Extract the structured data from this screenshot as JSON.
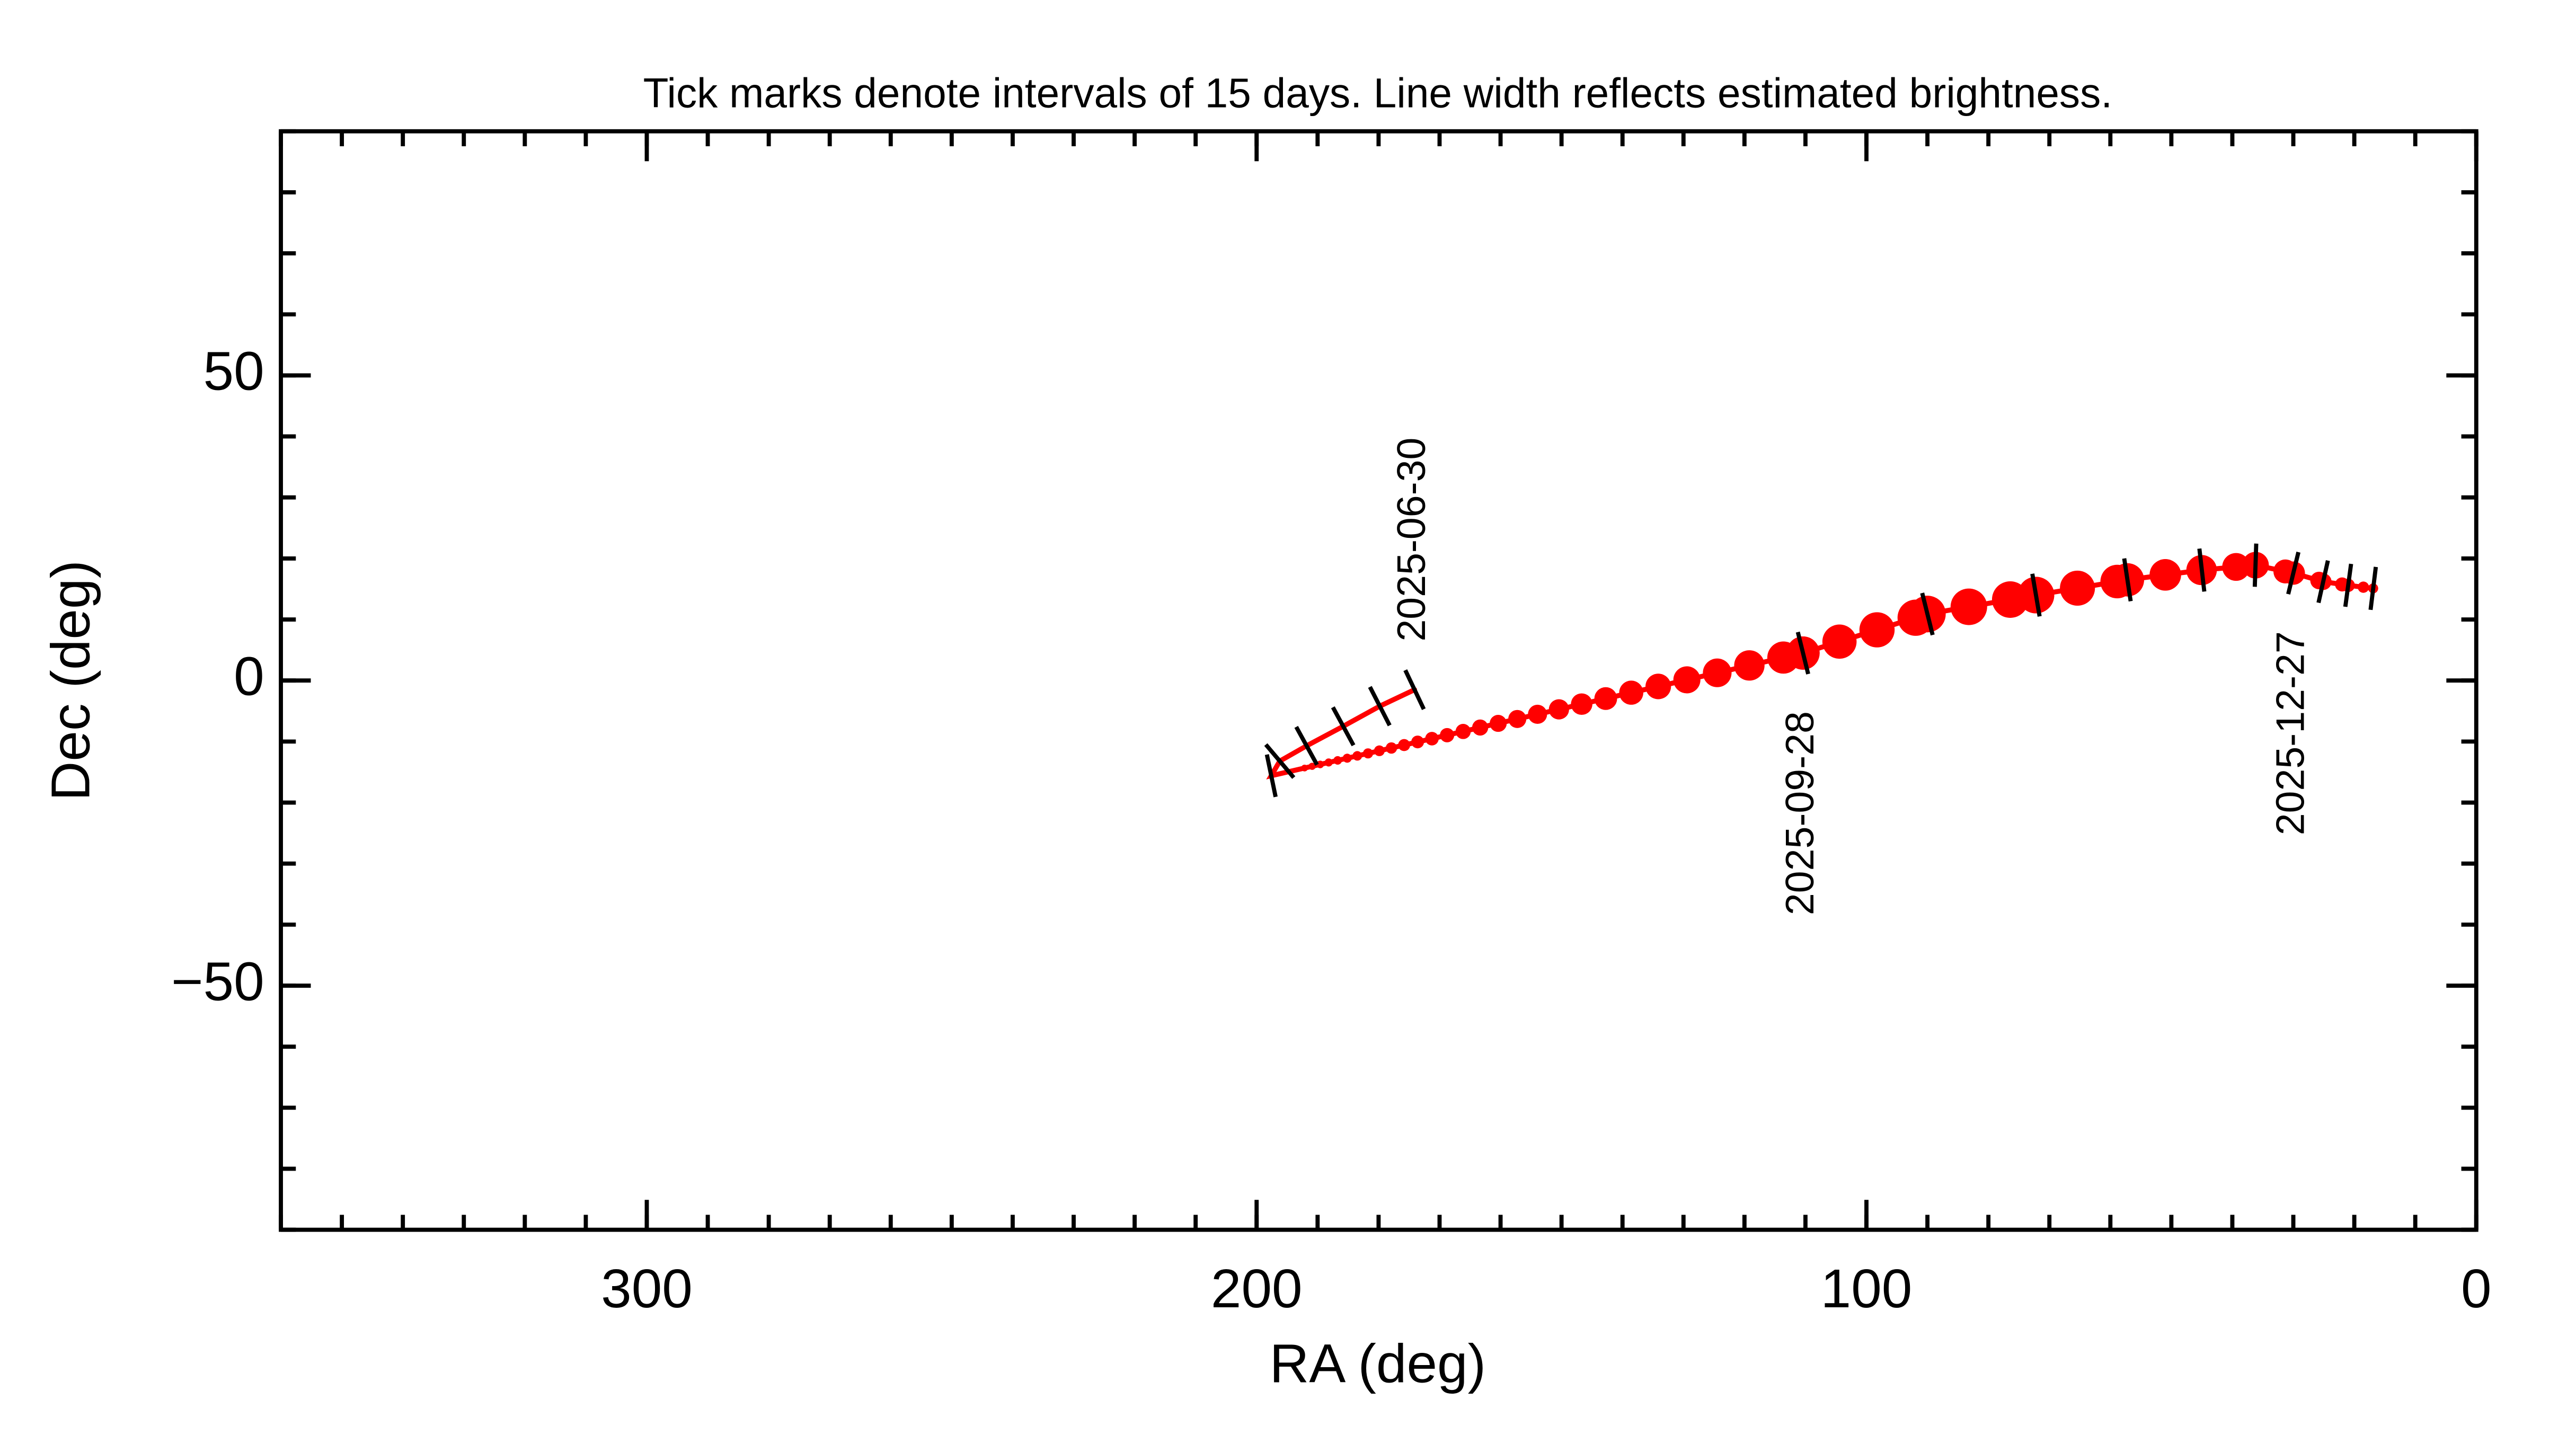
{
  "chart_data": {
    "type": "line",
    "title": "Tick marks denote intervals of 15 days.  Line width reflects estimated brightness.",
    "x_label": "RA (deg)",
    "y_label": "Dec (deg)",
    "xlim": [
      360,
      0
    ],
    "ylim": [
      -90,
      90
    ],
    "xticks": [
      300,
      200,
      100,
      0
    ],
    "yticks": [
      50,
      0,
      {
        "value": -50,
        "label": "−50"
      }
    ],
    "minor_tick_step": 10,
    "series": [
      {
        "color": "#ff0000",
        "x": [
          174.1,
          179.8,
          185.8,
          191.8,
          196.2,
          197.6,
          110.4,
          90,
          72.2,
          57.2,
          45,
          36.2,
          30.0,
          25.1,
          21.0,
          16.9
        ],
        "values": [
          -1.5,
          -4.2,
          -7.5,
          -10.7,
          -13.2,
          -15.6,
          4.5,
          10.9,
          14.0,
          16.5,
          18.1,
          18.9,
          17.6,
          16.2,
          15.6,
          15.1
        ],
        "sizes": [
          1.5,
          1.5,
          1.5,
          1.5,
          1.5,
          1.5,
          10,
          11,
          11,
          10,
          9,
          8,
          7,
          5,
          4,
          3
        ]
      }
    ],
    "annotations": [
      {
        "text": "2025-06-30",
        "x": 174.1,
        "y": -1.5
      },
      {
        "text": "2025-09-28",
        "x": 110.4,
        "y": 4.5
      },
      {
        "text": "2025-12-27",
        "x": 30.0,
        "y": 17.6
      }
    ]
  }
}
